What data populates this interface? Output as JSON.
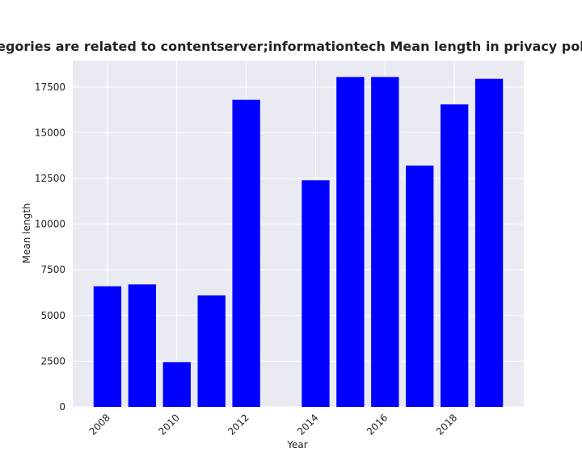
{
  "chart_data": {
    "type": "bar",
    "title": "hen categories are related to contentserver;informationtech Mean length in privacy policies by",
    "xlabel": "Year",
    "ylabel": "Mean length",
    "x": [
      2008,
      2009,
      2010,
      2011,
      2012,
      2014,
      2015,
      2016,
      2017,
      2018,
      2019
    ],
    "values": [
      6600,
      6700,
      2450,
      6100,
      16800,
      12400,
      18050,
      18050,
      13200,
      16550,
      17950
    ],
    "xticks": [
      2008,
      2010,
      2012,
      2014,
      2016,
      2018
    ],
    "xtick_labels": [
      "2008",
      "2010",
      "2012",
      "2014",
      "2016",
      "2018"
    ],
    "yticks": [
      0,
      2500,
      5000,
      7500,
      10000,
      12500,
      15000,
      17500
    ],
    "ytick_labels": [
      "0",
      "2500",
      "5000",
      "7500",
      "10000",
      "12500",
      "15000",
      "17500"
    ],
    "xlim": [
      2007.0,
      2020.0
    ],
    "ylim": [
      0,
      18950
    ],
    "bar_color": "#0000ff",
    "plot_background": "#eaeaf2",
    "grid": true
  }
}
